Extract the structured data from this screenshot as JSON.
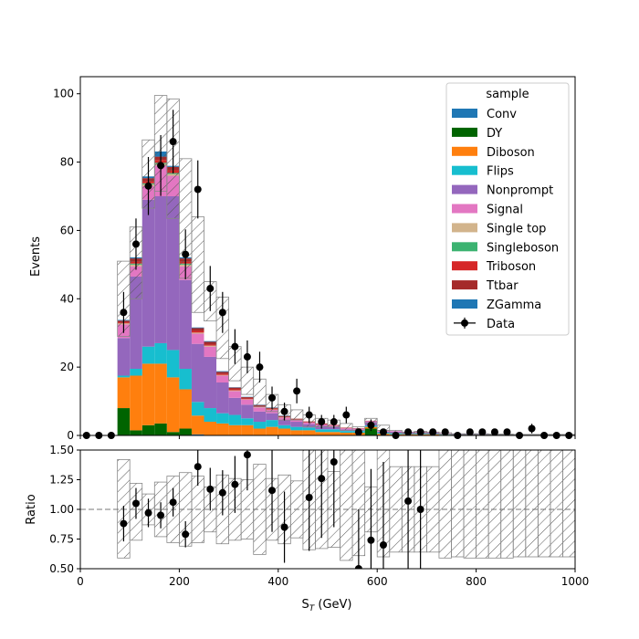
{
  "chart_data": [
    {
      "type": "bar",
      "stacked": true,
      "xlabel": "S_T (GeV)",
      "ylabel": "Events",
      "xlim": [
        0,
        1000
      ],
      "ylim": [
        0,
        105
      ],
      "yticks": [
        0,
        20,
        40,
        60,
        80,
        100
      ],
      "legend": {
        "title": "sample",
        "placement": "top-right"
      },
      "bin_edges": [
        0,
        25,
        50,
        75,
        100,
        125,
        150,
        175,
        200,
        225,
        250,
        275,
        300,
        325,
        350,
        375,
        400,
        425,
        450,
        475,
        500,
        525,
        550,
        575,
        600,
        625,
        650,
        675,
        700,
        725,
        750,
        775,
        800,
        825,
        850,
        875,
        900,
        925,
        950,
        975,
        1000
      ],
      "series": [
        {
          "name": "Conv",
          "color": "#1f77b4",
          "values": [
            0,
            0,
            0,
            0,
            0,
            0,
            0,
            0,
            0,
            0.3,
            0,
            0,
            0,
            0,
            0,
            0,
            0,
            0,
            0,
            0,
            0,
            0,
            0,
            0,
            0,
            0,
            0,
            0,
            0,
            0,
            0,
            0,
            0,
            0,
            0,
            0,
            0,
            0,
            0,
            0
          ]
        },
        {
          "name": "DY",
          "color": "#006400",
          "values": [
            0,
            0,
            0,
            8,
            1.5,
            3,
            3.5,
            1,
            2,
            0,
            0,
            0,
            0,
            0,
            0,
            0,
            0,
            0,
            0,
            0,
            0,
            0,
            0,
            2,
            0,
            0,
            0,
            0,
            0,
            0,
            0,
            0,
            0,
            0,
            0,
            0,
            0,
            0,
            0,
            0
          ]
        },
        {
          "name": "Diboson",
          "color": "#ff7f0e",
          "values": [
            0,
            0,
            0,
            9,
            16,
            18,
            17.5,
            16,
            11.5,
            5.5,
            4,
            3.5,
            3,
            3,
            2,
            2.5,
            2,
            1.5,
            1.5,
            1,
            1,
            0.8,
            0.8,
            0.5,
            0.5,
            0.3,
            0.3,
            0.3,
            0.3,
            0.2,
            0.2,
            0.2,
            0.2,
            0.1,
            0.1,
            0.1,
            0.1,
            0.1,
            0.1,
            0.1
          ]
        },
        {
          "name": "Flips",
          "color": "#17becf",
          "values": [
            0,
            0,
            0,
            0.5,
            2,
            5,
            6,
            8,
            6,
            4,
            4,
            3,
            3,
            2,
            2,
            2,
            1,
            1,
            0.8,
            0.8,
            0.8,
            0.5,
            0.5,
            0.4,
            0.3,
            0.3,
            0.2,
            0.2,
            0.2,
            0.1,
            0.1,
            0.1,
            0.1,
            0.1,
            0.1,
            0.1,
            0.1,
            0.1,
            0.1,
            0.1
          ]
        },
        {
          "name": "Nonprompt",
          "color": "#9467bd",
          "values": [
            0,
            0,
            0,
            11,
            27,
            43,
            43,
            45,
            26,
            17,
            15,
            9,
            5,
            4,
            3,
            2,
            1.5,
            1.5,
            1,
            1,
            0.8,
            0.5,
            0.4,
            1,
            0.3,
            0.5,
            0.3,
            0.3,
            0.3,
            0.2,
            0.1,
            0.1,
            0.1,
            0.1,
            0.1,
            0.1,
            0.1,
            0.1,
            0.1,
            0.1
          ]
        },
        {
          "name": "Signal",
          "color": "#e377c2",
          "values": [
            0,
            0,
            0,
            4,
            3,
            4,
            9,
            6,
            4,
            3,
            3,
            2,
            2,
            1.5,
            1.2,
            1,
            0.7,
            0.5,
            0.5,
            0.4,
            0.3,
            0.3,
            0.3,
            0.3,
            0.2,
            0.2,
            0.2,
            0.2,
            0.1,
            0.1,
            0.1,
            0.1,
            0.1,
            0.1,
            0.1,
            0.1,
            0.1,
            0.1,
            0.1,
            0.1
          ]
        },
        {
          "name": "Single top",
          "color": "#d2b48c",
          "values": [
            0,
            0,
            0,
            0.3,
            0.5,
            0.5,
            0.5,
            0.5,
            0.5,
            0.3,
            0.3,
            0.2,
            0.2,
            0.1,
            0.1,
            0.1,
            0.1,
            0.1,
            0,
            0,
            0,
            0,
            0,
            0,
            0,
            0,
            0,
            0,
            0,
            0,
            0,
            0,
            0,
            0,
            0,
            0,
            0,
            0,
            0,
            0
          ]
        },
        {
          "name": "Singleboson",
          "color": "#3cb371",
          "values": [
            0,
            0,
            0,
            0,
            0.3,
            0.3,
            0.3,
            0.3,
            0.3,
            0,
            0,
            0,
            0,
            0,
            0,
            0,
            0,
            0,
            0,
            0,
            0,
            0,
            0,
            0,
            0,
            0,
            0,
            0,
            0,
            0,
            0,
            0,
            0,
            0,
            0,
            0,
            0,
            0,
            0,
            0
          ]
        },
        {
          "name": "Triboson",
          "color": "#d62728",
          "values": [
            0,
            0,
            0,
            0.3,
            0.5,
            0.5,
            0.8,
            0.8,
            0.5,
            0.5,
            0.3,
            0.3,
            0.3,
            0.2,
            0.2,
            0.2,
            0.1,
            0.1,
            0.1,
            0.1,
            0.1,
            0.1,
            0,
            0,
            0,
            0,
            0,
            0,
            0,
            0,
            0,
            0,
            0,
            0,
            0,
            0,
            0,
            0,
            0,
            0,
            0
          ]
        },
        {
          "name": "Ttbar",
          "color": "#a52a2a",
          "values": [
            0,
            0,
            0,
            0.5,
            1,
            1,
            1,
            1,
            1,
            0.8,
            0.8,
            0.6,
            0.5,
            0.4,
            0.4,
            0.3,
            0.3,
            0.2,
            0.2,
            0.2,
            0.1,
            0.1,
            0.1,
            0.1,
            0.1,
            0,
            0,
            0,
            0,
            0,
            0,
            0,
            0,
            0,
            0,
            0,
            0,
            0,
            0,
            0,
            0
          ]
        },
        {
          "name": "ZGamma",
          "color": "#1f77b4",
          "values": [
            0,
            0,
            0,
            0.2,
            0.3,
            0.5,
            1.5,
            0.3,
            0.3,
            0.2,
            0.2,
            0.2,
            0.1,
            0.1,
            0.1,
            0.1,
            0.1,
            0,
            0,
            0,
            0,
            0,
            0,
            0,
            0,
            0,
            0,
            0,
            0,
            0,
            0,
            0,
            0,
            0,
            0,
            0,
            0,
            0,
            0,
            0,
            0
          ]
        }
      ],
      "uncertainty_band": {
        "up": [
          0,
          0,
          0,
          51,
          61,
          86.5,
          99.5,
          98.5,
          81,
          64,
          45,
          40.5,
          26,
          20,
          16.5,
          12,
          9,
          7.5,
          6,
          5,
          4.5,
          3.5,
          2.5,
          5,
          3,
          1.5,
          1,
          1.2,
          1,
          0.8,
          0.5,
          0.5,
          0.5,
          0.4,
          0.4,
          0.3,
          0.3,
          0.3,
          0.3,
          0.3
        ],
        "down": [
          0,
          0,
          0,
          29,
          40,
          66.5,
          71.5,
          63.5,
          46,
          36,
          33.5,
          22.5,
          16,
          12,
          8.5,
          7,
          4.5,
          4.5,
          2.5,
          2.5,
          2.5,
          1.5,
          1.5,
          3.5,
          1.5,
          0.7,
          0.5,
          0.6,
          0.5,
          0.4,
          0.2,
          0.2,
          0.2,
          0.2,
          0.2,
          0.1,
          0.1,
          0.1,
          0.1,
          0.1
        ]
      },
      "data": {
        "name": "Data",
        "x": [
          12.5,
          37.5,
          62.5,
          87.5,
          112.5,
          137.5,
          162.5,
          187.5,
          212.5,
          237.5,
          262.5,
          287.5,
          312.5,
          337.5,
          362.5,
          387.5,
          412.5,
          437.5,
          462.5,
          487.5,
          512.5,
          537.5,
          562.5,
          587.5,
          612.5,
          637.5,
          662.5,
          687.5,
          712.5,
          737.5,
          762.5,
          787.5,
          812.5,
          837.5,
          862.5,
          887.5,
          912.5,
          937.5,
          962.5,
          987.5
        ],
        "y": [
          0,
          0,
          0,
          36,
          56,
          73,
          79,
          86,
          53,
          72,
          43,
          36,
          26,
          23,
          20,
          11,
          7,
          13,
          6,
          4,
          4,
          6,
          1,
          3,
          1,
          0,
          1,
          1,
          1,
          1,
          0,
          1,
          1,
          1,
          1,
          0,
          2,
          0,
          0,
          0
        ],
        "yerr": [
          0,
          0,
          0,
          6,
          7.5,
          8.5,
          8.9,
          9.3,
          7.3,
          8.5,
          6.6,
          6,
          5.1,
          4.8,
          4.5,
          3.3,
          2.6,
          3.6,
          2.4,
          2,
          2,
          2.4,
          1,
          1.7,
          1,
          0,
          1,
          1,
          1,
          1,
          0,
          1,
          1,
          1,
          1,
          0,
          1.4,
          0,
          0,
          0
        ]
      }
    },
    {
      "type": "scatter",
      "xlabel": "S_T (GeV)",
      "ylabel": "Ratio",
      "xlim": [
        0,
        1000
      ],
      "ylim": [
        0.5,
        1.5
      ],
      "xticks": [
        0,
        200,
        400,
        600,
        800,
        1000
      ],
      "yticks": [
        0.5,
        0.75,
        1.0,
        1.25,
        1.5
      ],
      "reference_line": 1.0,
      "band": {
        "up": [
          1,
          1,
          1,
          1.42,
          1.22,
          1.13,
          1.23,
          1.28,
          1.31,
          1.28,
          1.19,
          1.29,
          1.26,
          1.25,
          1.38,
          1.26,
          1.29,
          1.24,
          1.5,
          1.5,
          1.32,
          1.5,
          1.5,
          1.19,
          1.5,
          1.36,
          1.36,
          1.36,
          1.36,
          1.5,
          1.5,
          1.5,
          1.5,
          1.5,
          1.5,
          1.5,
          1.5,
          1.5,
          1.5,
          1.5
        ],
        "down": [
          1,
          1,
          1,
          0.59,
          0.74,
          0.87,
          0.77,
          0.72,
          0.69,
          0.72,
          0.81,
          0.71,
          0.74,
          0.75,
          0.62,
          0.74,
          0.71,
          0.76,
          0.66,
          0.67,
          0.68,
          0.57,
          0.61,
          0.81,
          0.6,
          0.64,
          0.64,
          0.64,
          0.64,
          0.59,
          0.6,
          0.59,
          0.59,
          0.59,
          0.59,
          0.6,
          0.6,
          0.6,
          0.6,
          0.6
        ]
      },
      "points": {
        "x": [
          87.5,
          112.5,
          137.5,
          162.5,
          187.5,
          212.5,
          237.5,
          262.5,
          287.5,
          312.5,
          337.5,
          387.5,
          412.5,
          462.5,
          487.5,
          512.5,
          562.5,
          587.5,
          612.5,
          662.5,
          687.5
        ],
        "y": [
          0.88,
          1.05,
          0.97,
          0.95,
          1.06,
          0.79,
          1.36,
          1.17,
          1.14,
          1.21,
          1.46,
          1.16,
          0.85,
          1.1,
          1.26,
          1.4,
          0.5,
          0.74,
          0.7,
          1.07,
          1.0
        ],
        "yerr": [
          0.15,
          0.13,
          0.12,
          0.11,
          0.12,
          0.11,
          0.16,
          0.18,
          0.19,
          0.24,
          0.3,
          0.35,
          0.3,
          0.45,
          0.5,
          0.55,
          0.5,
          0.6,
          0.7,
          1.07,
          1.0
        ]
      }
    }
  ]
}
